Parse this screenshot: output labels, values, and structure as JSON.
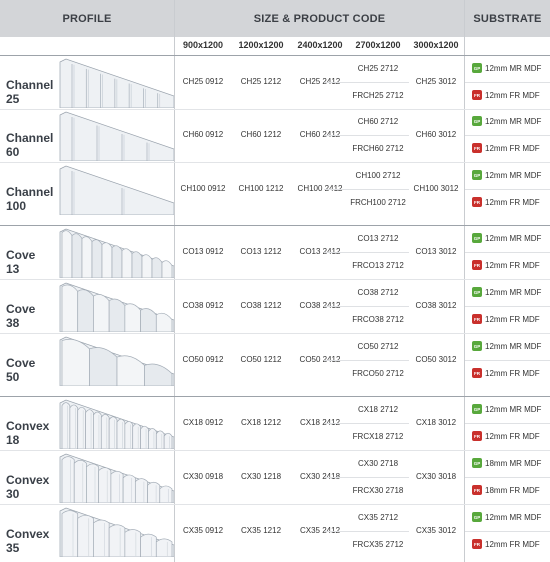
{
  "header": {
    "profile": "PROFILE",
    "size_code": "SIZE & PRODUCT CODE",
    "substrate": "SUBSTRATE"
  },
  "sizes": [
    "900x1200",
    "1200x1200",
    "2400x1200",
    "2700x1200",
    "3000x1200"
  ],
  "rows": [
    {
      "name": [
        "Channel",
        "25"
      ],
      "profile": "channel",
      "codes": [
        "CH25 0912",
        "CH25 1212",
        "CH25 2412"
      ],
      "c2700": [
        "CH25 2712",
        "FRCH25 2712"
      ],
      "c3000": "CH25 3012",
      "substrates": [
        {
          "badge": "GP",
          "kind": "mr",
          "label": "12mm MR MDF"
        },
        {
          "badge": "FR",
          "kind": "fr",
          "label": "12mm FR MDF"
        }
      ]
    },
    {
      "name": [
        "Channel",
        "60"
      ],
      "profile": "channel",
      "codes": [
        "CH60 0912",
        "CH60 1212",
        "CH60 2412"
      ],
      "c2700": [
        "CH60 2712",
        "FRCH60 2712"
      ],
      "c3000": "CH60 3012",
      "substrates": [
        {
          "badge": "GP",
          "kind": "mr",
          "label": "12mm MR MDF"
        },
        {
          "badge": "FR",
          "kind": "fr",
          "label": "12mm FR MDF"
        }
      ]
    },
    {
      "name": [
        "Channel",
        "100"
      ],
      "profile": "channel",
      "codes": [
        "CH100 0912",
        "CH100 1212",
        "CH100 2412"
      ],
      "c2700": [
        "CH100 2712",
        "FRCH100 2712"
      ],
      "c3000": "CH100 3012",
      "substrates": [
        {
          "badge": "GP",
          "kind": "mr",
          "label": "12mm MR MDF"
        },
        {
          "badge": "FR",
          "kind": "fr",
          "label": "12mm FR MDF"
        }
      ]
    },
    {
      "name": [
        "Cove",
        "13"
      ],
      "profile": "cove",
      "codes": [
        "CO13 0912",
        "CO13 1212",
        "CO13 2412"
      ],
      "c2700": [
        "CO13 2712",
        "FRCO13 2712"
      ],
      "c3000": "CO13 3012",
      "substrates": [
        {
          "badge": "GP",
          "kind": "mr",
          "label": "12mm MR MDF"
        },
        {
          "badge": "FR",
          "kind": "fr",
          "label": "12mm FR MDF"
        }
      ]
    },
    {
      "name": [
        "Cove",
        "38"
      ],
      "profile": "cove",
      "codes": [
        "CO38 0912",
        "CO38 1212",
        "CO38 2412"
      ],
      "c2700": [
        "CO38 2712",
        "FRCO38 2712"
      ],
      "c3000": "CO38 3012",
      "substrates": [
        {
          "badge": "GP",
          "kind": "mr",
          "label": "12mm MR MDF"
        },
        {
          "badge": "FR",
          "kind": "fr",
          "label": "12mm FR MDF"
        }
      ]
    },
    {
      "name": [
        "Cove",
        "50"
      ],
      "profile": "cove",
      "codes": [
        "CO50 0912",
        "CO50 1212",
        "CO50 2412"
      ],
      "c2700": [
        "CO50 2712",
        "FRCO50 2712"
      ],
      "c3000": "CO50 3012",
      "substrates": [
        {
          "badge": "GP",
          "kind": "mr",
          "label": "12mm MR MDF"
        },
        {
          "badge": "FR",
          "kind": "fr",
          "label": "12mm FR MDF"
        }
      ]
    },
    {
      "name": [
        "Convex",
        "18"
      ],
      "profile": "convex",
      "codes": [
        "CX18 0912",
        "CX18 1212",
        "CX18 2412"
      ],
      "c2700": [
        "CX18 2712",
        "FRCX18 2712"
      ],
      "c3000": "CX18 3012",
      "substrates": [
        {
          "badge": "GP",
          "kind": "mr",
          "label": "12mm MR MDF"
        },
        {
          "badge": "FR",
          "kind": "fr",
          "label": "12mm FR MDF"
        }
      ]
    },
    {
      "name": [
        "Convex",
        "30"
      ],
      "profile": "convex",
      "codes": [
        "CX30 0918",
        "CX30 1218",
        "CX30 2418"
      ],
      "c2700": [
        "CX30 2718",
        "FRCX30 2718"
      ],
      "c3000": "CX30 3018",
      "substrates": [
        {
          "badge": "GP",
          "kind": "mr",
          "label": "18mm MR MDF"
        },
        {
          "badge": "FR",
          "kind": "fr",
          "label": "18mm FR MDF"
        }
      ]
    },
    {
      "name": [
        "Convex",
        "35"
      ],
      "profile": "convex",
      "codes": [
        "CX35 0912",
        "CX35 1212",
        "CX35 2412"
      ],
      "c2700": [
        "CX35 2712",
        "FRCX35 2712"
      ],
      "c3000": "CX35 3012",
      "substrates": [
        {
          "badge": "GP",
          "kind": "mr",
          "label": "12mm MR MDF"
        },
        {
          "badge": "FR",
          "kind": "fr",
          "label": "12mm FR MDF"
        }
      ]
    }
  ]
}
